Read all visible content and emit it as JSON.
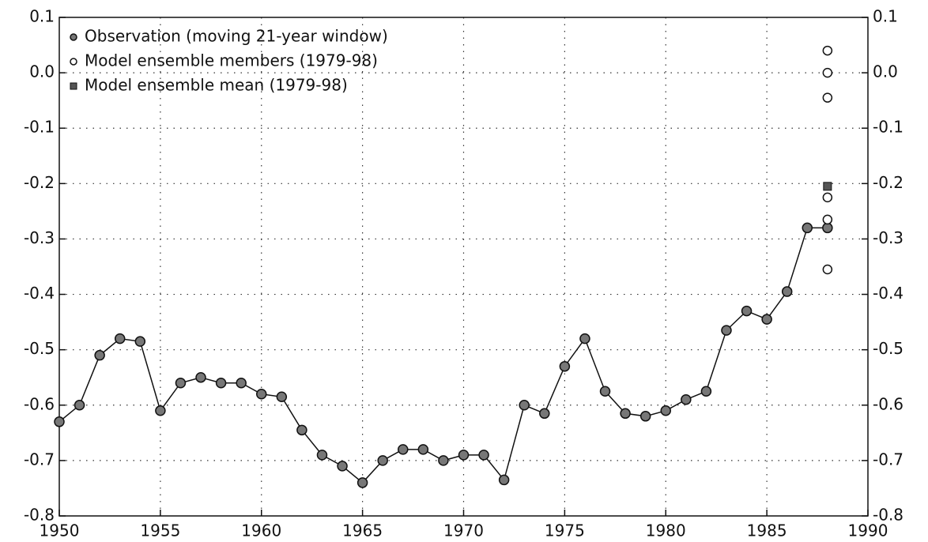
{
  "chart_data": {
    "type": "line",
    "xlim": [
      1950,
      1990
    ],
    "xticks": [
      1950,
      1955,
      1960,
      1965,
      1970,
      1975,
      1980,
      1985,
      1990
    ],
    "ylim": [
      -0.8,
      0.1
    ],
    "yticks": [
      0.1,
      {
        "value": 0,
        "label": "0.0"
      },
      -0.1,
      -0.2,
      -0.3,
      -0.4,
      -0.5,
      -0.6,
      -0.7,
      -0.8
    ],
    "grid": true,
    "legend": "upper-left",
    "series": [
      {
        "name": "Observation (moving 21-year window)",
        "color": "#777777",
        "marker": "filled-circle",
        "line": true,
        "x": [
          1950,
          1951,
          1952,
          1953,
          1954,
          1955,
          1956,
          1957,
          1958,
          1959,
          1960,
          1961,
          1962,
          1963,
          1964,
          1965,
          1966,
          1967,
          1968,
          1969,
          1970,
          1971,
          1972,
          1973,
          1974,
          1975,
          1976,
          1977,
          1978,
          1979,
          1980,
          1981,
          1982,
          1983,
          1984,
          1985,
          1986,
          1987,
          1988
        ],
        "values": [
          -0.63,
          -0.6,
          -0.51,
          -0.48,
          -0.485,
          -0.61,
          -0.56,
          -0.55,
          -0.56,
          -0.56,
          -0.58,
          -0.585,
          -0.645,
          -0.69,
          -0.71,
          -0.74,
          -0.7,
          -0.68,
          -0.68,
          -0.7,
          -0.69,
          -0.69,
          -0.735,
          -0.6,
          -0.615,
          -0.53,
          -0.48,
          -0.575,
          -0.615,
          -0.62,
          -0.61,
          -0.59,
          -0.575,
          -0.465,
          -0.43,
          -0.445,
          -0.395,
          -0.28,
          -0.28
        ]
      },
      {
        "name": "Model ensemble members (1979-98)",
        "color": "#ffffff",
        "marker": "open-circle",
        "line": false,
        "x": [
          1988,
          1988,
          1988,
          1988,
          1988,
          1988
        ],
        "values": [
          0.04,
          0.0,
          -0.045,
          -0.225,
          -0.265,
          -0.355
        ]
      },
      {
        "name": "Model ensemble mean (1979-98)",
        "color": "#555555",
        "marker": "square",
        "line": false,
        "x": [
          1988
        ],
        "values": [
          -0.205
        ]
      }
    ]
  }
}
